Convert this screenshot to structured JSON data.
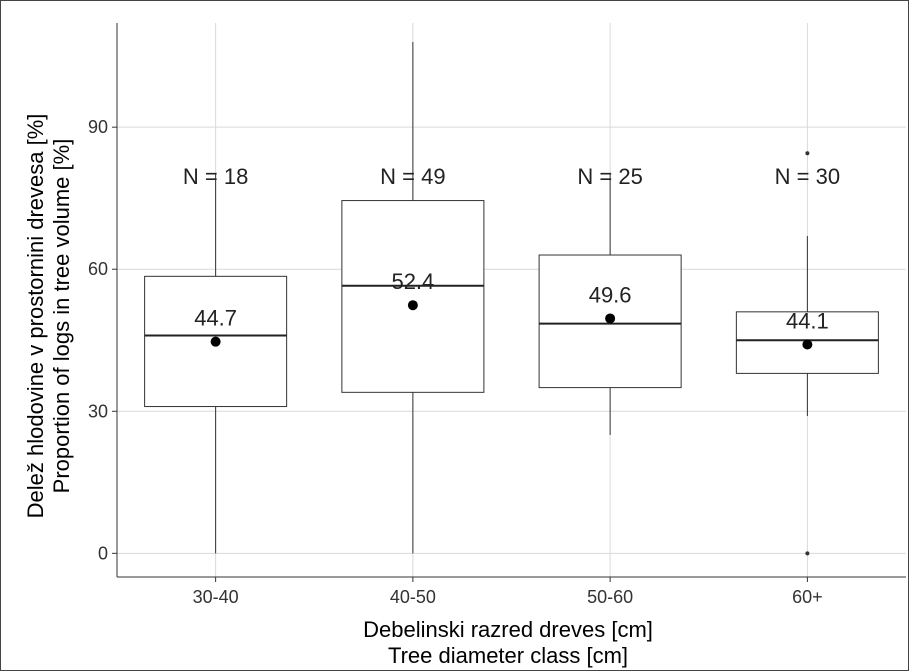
{
  "chart_data": {
    "type": "box",
    "categories": [
      "30-40",
      "40-50",
      "50-60",
      "60+"
    ],
    "boxes": [
      {
        "category": "30-40",
        "whisker_low": 0,
        "q1": 31,
        "median": 46,
        "q3": 58.5,
        "whisker_high": 80,
        "mean": 44.7,
        "outliers": []
      },
      {
        "category": "40-50",
        "whisker_low": 0,
        "q1": 34,
        "median": 56.5,
        "q3": 74.5,
        "whisker_high": 108,
        "mean": 52.4,
        "outliers": []
      },
      {
        "category": "50-60",
        "whisker_low": 25,
        "q1": 35,
        "median": 48.5,
        "q3": 63,
        "whisker_high": 80,
        "mean": 49.6,
        "outliers": []
      },
      {
        "category": "60+",
        "whisker_low": 29,
        "q1": 38,
        "median": 45,
        "q3": 51,
        "whisker_high": 67,
        "mean": 44.1,
        "outliers": [
          0,
          84.5
        ]
      }
    ],
    "mean_labels": [
      "44.7",
      "52.4",
      "49.6",
      "44.1"
    ],
    "n_labels": [
      "N = 18",
      "N = 49",
      "N = 25",
      "N = 30"
    ],
    "y_ticks": [
      0,
      30,
      60,
      90
    ],
    "ylim": [
      -5,
      112
    ],
    "xlabel": "Debelinski razred dreves [cm]",
    "xlabel2": "Tree diameter class [cm]",
    "ylabel": "Delež hlodovine v prostornini drevesa  [%]",
    "ylabel2": "Proportion of logs in tree volume [%]",
    "grid": true,
    "colors": {
      "box_fill": "#ffffff",
      "box_stroke": "#333333",
      "grid": "#d9d9d9",
      "mean_point": "#000000"
    }
  }
}
